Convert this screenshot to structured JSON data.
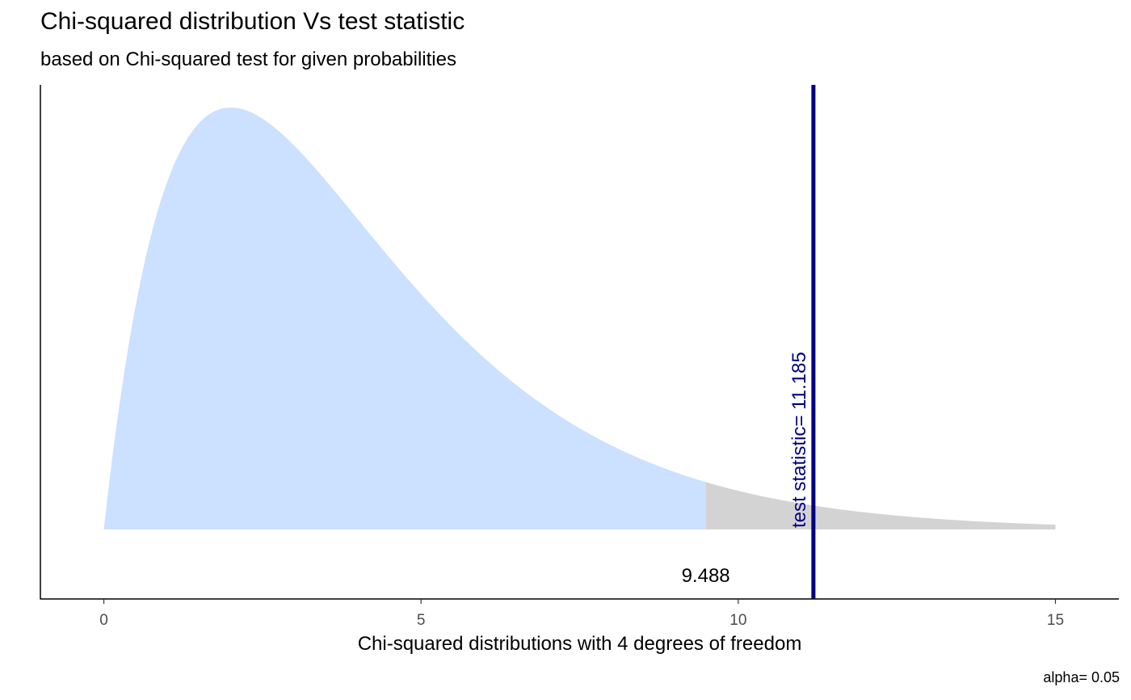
{
  "chart_data": {
    "type": "area",
    "title": "Chi-squared distribution Vs test statistic",
    "subtitle": "based on Chi-squared test for given probabilities",
    "xlabel": "Chi-squared distributions with 4 degrees of freedom",
    "ylabel": "",
    "degrees_of_freedom": 4,
    "xlim": [
      -1,
      16
    ],
    "x_range_plotted": [
      0,
      15
    ],
    "x_ticks": [
      0,
      5,
      10,
      15
    ],
    "x_tick_labels": [
      "0",
      "5",
      "10",
      "15"
    ],
    "critical_value": 9.488,
    "critical_value_label": "9.488",
    "test_statistic": 11.185,
    "test_statistic_label": "test statistic= 11.185",
    "caption": "alpha= 0.05",
    "regions": [
      {
        "name": "acceptance",
        "from": 0,
        "to": 9.488,
        "color": "#CCE0FF"
      },
      {
        "name": "rejection",
        "from": 9.488,
        "to": 15,
        "color": "#D3D3D3"
      }
    ],
    "colors": {
      "test_statistic_line": "#000080",
      "axis": "#000000",
      "tick_text": "#4D4D4D"
    },
    "grid": false,
    "legend": "none"
  }
}
